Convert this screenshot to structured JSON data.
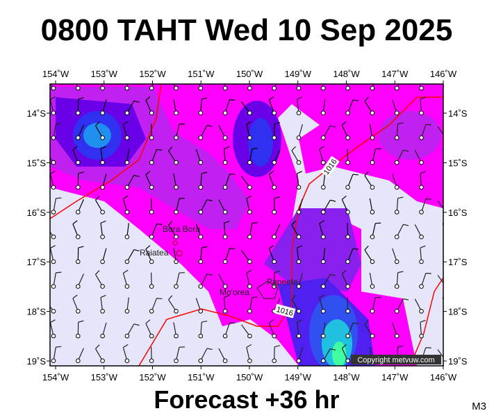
{
  "header": {
    "title": "0800 TAHT Wed 10 Sep 2025"
  },
  "map": {
    "lon_labels": [
      "154˚W",
      "153˚W",
      "152˚W",
      "151˚W",
      "150˚W",
      "149˚W",
      "148˚W",
      "147˚W",
      "146˚W"
    ],
    "lat_labels": [
      "14˚S",
      "15˚S",
      "16˚S",
      "17˚S",
      "18˚S",
      "19˚S"
    ],
    "places": [
      "Bora Bora",
      "Raiatea",
      "Mo'orea",
      "Papeete"
    ],
    "isobar_labels": [
      "1016",
      "1016"
    ],
    "copyright": "Copyright metvuw.com"
  },
  "footer": {
    "forecast": "Forecast +36 hr",
    "code": "M3"
  }
}
